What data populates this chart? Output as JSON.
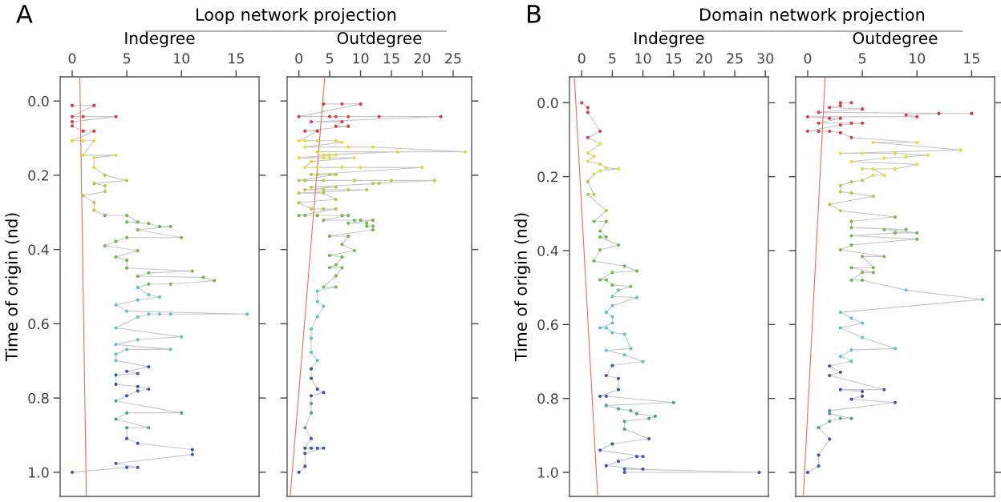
{
  "chart_data": [
    {
      "type": "line",
      "orientation": "horizontal",
      "title": "Loop network projection",
      "xlabel": "Indegree",
      "ylabel": "Time of origin (nd)",
      "annotations": [
        "A"
      ],
      "xlim": [
        -1.1,
        17.1
      ],
      "xticks": [
        0,
        5,
        10,
        15
      ],
      "ylim": [
        1.065,
        -0.065
      ],
      "yticks": [
        {
          "value": 0,
          "label": "0.0"
        },
        {
          "value": 0.2,
          "label": "0.2"
        },
        {
          "value": 0.4,
          "label": "0.4"
        },
        {
          "value": 0.6,
          "label": "0.6"
        },
        {
          "value": 0.8,
          "label": "0.8"
        },
        {
          "value": 1,
          "label": "1.0"
        }
      ],
      "series": [
        {
          "color": "#c8c8c8",
          "marker": "circle",
          "x": [
            0.012,
            0.012,
            0.042,
            0.042,
            0.042,
            0.056,
            0.067,
            0.081,
            0.081,
            0.107,
            0.107,
            0.107,
            0.146,
            0.146,
            0.153,
            0.179,
            0.2,
            0.214,
            0.222,
            0.228,
            0.244,
            0.255,
            0.273,
            0.294,
            0.308,
            0.308,
            0.326,
            0.326,
            0.33,
            0.338,
            0.338,
            0.347,
            0.368,
            0.368,
            0.378,
            0.39,
            0.403,
            0.42,
            0.429,
            0.45,
            0.458,
            0.463,
            0.472,
            0.475,
            0.484,
            0.493,
            0.493,
            0.502,
            0.522,
            0.528,
            0.536,
            0.549,
            0.566,
            0.574,
            0.574,
            0.574,
            0.574,
            0.582,
            0.611,
            0.635,
            0.643,
            0.656,
            0.669,
            0.669,
            0.682,
            0.699,
            0.716,
            0.728,
            0.734,
            0.738,
            0.763,
            0.769,
            0.776,
            0.781,
            0.794,
            0.808,
            0.84,
            0.84,
            0.857,
            0.88,
            0.88,
            0.909,
            0.922,
            0.939,
            0.952,
            0.976,
            0.987,
            0.987,
            1.0
          ],
          "values": [
            0,
            2,
            0,
            1,
            4,
            0,
            0,
            1,
            2,
            0,
            1,
            2,
            1,
            4,
            2,
            2,
            3,
            5,
            2,
            3,
            3,
            1,
            2,
            2,
            3,
            5,
            6,
            5,
            7,
            8,
            9,
            6,
            10,
            5,
            4,
            3,
            6,
            4,
            5,
            5,
            11,
            7,
            6,
            12,
            13,
            9,
            7,
            6,
            7,
            8,
            6,
            4,
            5,
            16,
            8,
            9,
            7,
            6,
            4,
            10,
            6,
            4,
            9,
            5,
            4,
            4,
            7,
            5,
            6,
            4,
            4,
            6,
            7,
            6,
            5,
            4,
            10,
            5,
            4,
            7,
            5,
            5,
            6,
            11,
            11,
            4,
            6,
            5,
            0
          ],
          "colors": [
            "#e03a3e",
            "#e03a3e",
            "#e03a3e",
            "#e03a3e",
            "#e03a3e",
            "#e03a3e",
            "#e03a3e",
            "#e03a3e",
            "#e03a3e",
            "#e8dc2c",
            "#e8dc2c",
            "#e8dc2c",
            "#e8dc2c",
            "#e8dc2c",
            "#e8dc2c",
            "#e8dc2c",
            "#b8c93a",
            "#b8c93a",
            "#b8c93a",
            "#b8c93a",
            "#b8c93a",
            "#b8c93a",
            "#b8c93a",
            "#b8c93a",
            "#72b84e",
            "#72b84e",
            "#72b84e",
            "#72b84e",
            "#72b84e",
            "#72b84e",
            "#72b84e",
            "#72b84e",
            "#72b84e",
            "#72b84e",
            "#72b84e",
            "#72b84e",
            "#72b84e",
            "#72b84e",
            "#72b84e",
            "#72b84e",
            "#72b84e",
            "#72b84e",
            "#72b84e",
            "#72b84e",
            "#72b84e",
            "#72b84e",
            "#72b84e",
            "#5ec3cc",
            "#5ec3cc",
            "#5ec3cc",
            "#5ec3cc",
            "#5ec3cc",
            "#5ec3cc",
            "#5ec3cc",
            "#5ec3cc",
            "#5ec3cc",
            "#5ec3cc",
            "#5ec3cc",
            "#5ec3cc",
            "#5ec3cc",
            "#5ec3cc",
            "#5ec3cc",
            "#5ec3cc",
            "#5ec3cc",
            "#5ec3cc",
            "#5ec3cc",
            "#3f56a6",
            "#3f56a6",
            "#3f56a6",
            "#3f56a6",
            "#3f56a6",
            "#3f56a6",
            "#3f56a6",
            "#3f56a6",
            "#3f56a6",
            "#4f9e94",
            "#4f9e94",
            "#4f9e94",
            "#4f9e94",
            "#4f9e94",
            "#4f9e94",
            "#3f56a6",
            "#3f56a6",
            "#3f56a6",
            "#3f56a6",
            "#3f56a6",
            "#3f56a6",
            "#3f56a6",
            "#3f56a6"
          ]
        },
        {
          "type": "line",
          "color": "#f26d5b",
          "x": [
            -0.065,
            1.065
          ],
          "values": [
            0.7,
            1.3
          ]
        }
      ]
    },
    {
      "type": "line",
      "orientation": "horizontal",
      "xlabel": "Outdegree",
      "tick_labels": "x",
      "xlim": [
        -1.9,
        28
      ],
      "xticks": [
        0,
        5,
        10,
        15,
        20,
        25
      ],
      "ylim": [
        1.065,
        -0.065
      ],
      "yticks": [
        {
          "value": 0,
          "label": null
        },
        {
          "value": 0.2,
          "label": null
        },
        {
          "value": 0.4,
          "label": null
        },
        {
          "value": 0.6,
          "label": null
        },
        {
          "value": 0.8,
          "label": null
        },
        {
          "value": 1,
          "label": null
        }
      ],
      "series": [
        {
          "color": "#c8c8c8",
          "marker": "circle",
          "x": [
            0.008,
            0.008,
            0.008,
            0.042,
            0.042,
            0.042,
            0.042,
            0.042,
            0.042,
            0.056,
            0.056,
            0.068,
            0.068,
            0.081,
            0.081,
            0.107,
            0.107,
            0.107,
            0.107,
            0.111,
            0.124,
            0.124,
            0.124,
            0.137,
            0.137,
            0.137,
            0.145,
            0.145,
            0.145,
            0.153,
            0.153,
            0.153,
            0.153,
            0.163,
            0.179,
            0.179,
            0.179,
            0.179,
            0.179,
            0.198,
            0.198,
            0.198,
            0.198,
            0.214,
            0.214,
            0.214,
            0.214,
            0.214,
            0.214,
            0.222,
            0.222,
            0.232,
            0.232,
            0.239,
            0.239,
            0.239,
            0.239,
            0.248,
            0.248,
            0.265,
            0.274,
            0.291,
            0.291,
            0.291,
            0.308,
            0.308,
            0.308,
            0.308,
            0.308,
            0.321,
            0.321,
            0.321,
            0.321,
            0.329,
            0.329,
            0.337,
            0.337,
            0.347,
            0.364,
            0.364,
            0.386,
            0.403,
            0.416,
            0.42,
            0.441,
            0.449,
            0.449,
            0.471,
            0.501,
            0.501,
            0.512,
            0.54,
            0.553,
            0.581,
            0.614,
            0.639,
            0.677,
            0.699,
            0.721,
            0.747,
            0.776,
            0.785,
            0.794,
            0.815,
            0.84,
            0.88,
            0.909,
            0.935,
            0.935,
            0.935,
            0.935,
            0.949,
            0.984,
            1.0
          ],
          "values": [
            4,
            7,
            10,
            0,
            5,
            6,
            8,
            13,
            23,
            2,
            7,
            6,
            8,
            1,
            3,
            0,
            1,
            3,
            6,
            7,
            1,
            8,
            12,
            27,
            3,
            16,
            4,
            5,
            6,
            0,
            4,
            5,
            9,
            2,
            1,
            3,
            7,
            10,
            20,
            2,
            3,
            5,
            6,
            0,
            1,
            4,
            9,
            15,
            22,
            12,
            13,
            2,
            6,
            1,
            4,
            8,
            11,
            0,
            4,
            6,
            0,
            2,
            4,
            6,
            0,
            1,
            3,
            7,
            8,
            4,
            9,
            10,
            12,
            8,
            11,
            11,
            12,
            12,
            5,
            8,
            7,
            9,
            5,
            7,
            6,
            5,
            7,
            6,
            4,
            6,
            3,
            3,
            4,
            3,
            2,
            2,
            2,
            3,
            2,
            2,
            3,
            4,
            2,
            2,
            2,
            1,
            2,
            1,
            2,
            3,
            4,
            1,
            1,
            0
          ],
          "colors": [
            "#e03a3e",
            "#e03a3e",
            "#e03a3e",
            "#e03a3e",
            "#e03a3e",
            "#e03a3e",
            "#e03a3e",
            "#e03a3e",
            "#e03a3e",
            "#e03a3e",
            "#e03a3e",
            "#e03a3e",
            "#e03a3e",
            "#e03a3e",
            "#e03a3e",
            "#e8dc2c",
            "#e8dc2c",
            "#e8dc2c",
            "#e8dc2c",
            "#e8dc2c",
            "#e8dc2c",
            "#e8dc2c",
            "#e8dc2c",
            "#e8dc2c",
            "#e8dc2c",
            "#e8dc2c",
            "#e8dc2c",
            "#e8dc2c",
            "#e8dc2c",
            "#e8dc2c",
            "#e8dc2c",
            "#e8dc2c",
            "#e8dc2c",
            "#e8dc2c",
            "#e8dc2c",
            "#e8dc2c",
            "#e8dc2c",
            "#e8dc2c",
            "#e8dc2c",
            "#b8c93a",
            "#b8c93a",
            "#b8c93a",
            "#b8c93a",
            "#b8c93a",
            "#b8c93a",
            "#b8c93a",
            "#b8c93a",
            "#b8c93a",
            "#b8c93a",
            "#b8c93a",
            "#b8c93a",
            "#b8c93a",
            "#b8c93a",
            "#b8c93a",
            "#b8c93a",
            "#b8c93a",
            "#b8c93a",
            "#b8c93a",
            "#b8c93a",
            "#b8c93a",
            "#b8c93a",
            "#b8c93a",
            "#b8c93a",
            "#b8c93a",
            "#72b84e",
            "#72b84e",
            "#72b84e",
            "#72b84e",
            "#72b84e",
            "#72b84e",
            "#72b84e",
            "#72b84e",
            "#72b84e",
            "#72b84e",
            "#72b84e",
            "#72b84e",
            "#72b84e",
            "#72b84e",
            "#72b84e",
            "#72b84e",
            "#72b84e",
            "#72b84e",
            "#72b84e",
            "#72b84e",
            "#72b84e",
            "#72b84e",
            "#72b84e",
            "#72b84e",
            "#72b84e",
            "#72b84e",
            "#5ec3cc",
            "#5ec3cc",
            "#5ec3cc",
            "#5ec3cc",
            "#5ec3cc",
            "#5ec3cc",
            "#5ec3cc",
            "#5ec3cc",
            "#3f56a6",
            "#3f56a6",
            "#3f56a6",
            "#3f56a6",
            "#3f56a6",
            "#4f9e94",
            "#4f9e94",
            "#4f9e94",
            "#3f56a6",
            "#3f56a6",
            "#3f56a6",
            "#3f56a6",
            "#3f56a6",
            "#3f56a6",
            "#3f56a6",
            "#3f56a6"
          ]
        },
        {
          "type": "line",
          "color": "#f26d5b",
          "x": [
            -0.065,
            1.065
          ],
          "values": [
            4.2,
            -1.4
          ]
        }
      ]
    },
    {
      "type": "line",
      "orientation": "horizontal",
      "title": "Domain network projection",
      "xlabel": "Indegree",
      "ylabel": "Time of origin (nd)",
      "annotations": [
        "B"
      ],
      "xlim": [
        -2,
        30.5
      ],
      "xticks": [
        0,
        5,
        10,
        15,
        20,
        25,
        30
      ],
      "ylim": [
        1.065,
        -0.07
      ],
      "yticks": [
        {
          "value": 0,
          "label": "0.0"
        },
        {
          "value": 0.2,
          "label": "0.2"
        },
        {
          "value": 0.4,
          "label": "0.4"
        },
        {
          "value": 0.6,
          "label": "0.6"
        },
        {
          "value": 0.8,
          "label": "0.8"
        },
        {
          "value": 1,
          "label": "1.0"
        }
      ],
      "series": [
        {
          "color": "#c8c8c8",
          "marker": "circle",
          "x": [
            0,
            0.013,
            0.026,
            0.077,
            0.094,
            0.111,
            0.136,
            0.145,
            0.158,
            0.166,
            0.176,
            0.179,
            0.184,
            0.193,
            0.213,
            0.248,
            0.248,
            0.292,
            0.321,
            0.321,
            0.347,
            0.363,
            0.363,
            0.385,
            0.398,
            0.428,
            0.442,
            0.455,
            0.459,
            0.479,
            0.479,
            0.493,
            0.497,
            0.507,
            0.524,
            0.527,
            0.549,
            0.567,
            0.579,
            0.596,
            0.609,
            0.609,
            0.622,
            0.626,
            0.665,
            0.67,
            0.682,
            0.7,
            0.711,
            0.738,
            0.746,
            0.776,
            0.794,
            0.794,
            0.811,
            0.819,
            0.828,
            0.833,
            0.841,
            0.848,
            0.854,
            0.862,
            0.883,
            0.909,
            0.923,
            0.94,
            0.957,
            0.957,
            0.97,
            0.982,
            0.991,
            0.991,
            1.0,
            1.0
          ],
          "values": [
            0,
            1,
            1,
            3,
            1,
            3,
            1,
            2,
            1,
            3,
            4,
            6,
            3,
            2,
            1,
            2,
            1,
            4,
            2,
            4,
            3,
            4,
            3,
            6,
            3,
            2,
            7,
            9,
            5,
            3,
            4,
            5,
            8,
            6,
            5,
            9,
            5,
            4,
            5,
            5,
            3,
            4,
            5,
            7,
            8,
            4,
            7,
            10,
            5,
            4,
            6,
            6,
            3,
            4,
            15,
            4,
            6,
            8,
            9,
            12,
            11,
            7,
            7,
            11,
            5,
            3,
            10,
            9,
            6,
            4,
            10,
            7,
            29,
            7
          ],
          "colors": [
            "#e03a3e",
            "#e03a3e",
            "#e03a3e",
            "#e03a3e",
            "#e03a3e",
            "#e8dc2c",
            "#e8dc2c",
            "#e8dc2c",
            "#e8dc2c",
            "#e8dc2c",
            "#e8dc2c",
            "#e8dc2c",
            "#e8dc2c",
            "#e8dc2c",
            "#b8c93a",
            "#b8c93a",
            "#b8c93a",
            "#b8c93a",
            "#72b84e",
            "#72b84e",
            "#72b84e",
            "#72b84e",
            "#72b84e",
            "#72b84e",
            "#72b84e",
            "#72b84e",
            "#72b84e",
            "#72b84e",
            "#72b84e",
            "#72b84e",
            "#72b84e",
            "#72b84e",
            "#72b84e",
            "#5ec3cc",
            "#5ec3cc",
            "#5ec3cc",
            "#5ec3cc",
            "#5ec3cc",
            "#5ec3cc",
            "#5ec3cc",
            "#5ec3cc",
            "#5ec3cc",
            "#5ec3cc",
            "#5ec3cc",
            "#5ec3cc",
            "#5ec3cc",
            "#5ec3cc",
            "#5ec3cc",
            "#3f56a6",
            "#3f56a6",
            "#3f56a6",
            "#3f56a6",
            "#3f56a6",
            "#3f56a6",
            "#4f9e94",
            "#4f9e94",
            "#4f9e94",
            "#4f9e94",
            "#4f9e94",
            "#4f9e94",
            "#4f9e94",
            "#4f9e94",
            "#4f9e94",
            "#3f56a6",
            "#3f56a6",
            "#3f56a6",
            "#3f56a6",
            "#3f56a6",
            "#3f56a6",
            "#3f56a6",
            "#3f56a6",
            "#3f56a6",
            "#3f56a6",
            "#3f56a6"
          ]
        },
        {
          "type": "line",
          "color": "#f26d5b",
          "x": [
            -0.07,
            1.065
          ],
          "values": [
            -1.2,
            2.6
          ]
        }
      ]
    },
    {
      "type": "line",
      "orientation": "horizontal",
      "xlabel": "Outdegree",
      "tick_labels": "x",
      "xlim": [
        -1.1,
        17.1
      ],
      "xticks": [
        0,
        5,
        10,
        15
      ],
      "ylim": [
        1.065,
        -0.07
      ],
      "yticks": [
        {
          "value": 0,
          "label": null
        },
        {
          "value": 0.2,
          "label": null
        },
        {
          "value": 0.4,
          "label": null
        },
        {
          "value": 0.6,
          "label": null
        },
        {
          "value": 0.8,
          "label": null
        },
        {
          "value": 1,
          "label": null
        }
      ],
      "series": [
        {
          "color": "#c8c8c8",
          "marker": "circle",
          "x": [
            0,
            0,
            0.008,
            0.013,
            0.017,
            0.026,
            0.029,
            0.029,
            0.033,
            0.038,
            0.038,
            0.042,
            0.042,
            0.055,
            0.055,
            0.055,
            0.06,
            0.077,
            0.077,
            0.077,
            0.081,
            0.094,
            0.107,
            0.107,
            0.128,
            0.137,
            0.137,
            0.137,
            0.142,
            0.146,
            0.15,
            0.159,
            0.167,
            0.179,
            0.179,
            0.179,
            0.196,
            0.196,
            0.21,
            0.214,
            0.224,
            0.241,
            0.244,
            0.253,
            0.275,
            0.292,
            0.309,
            0.321,
            0.338,
            0.343,
            0.343,
            0.352,
            0.352,
            0.36,
            0.369,
            0.385,
            0.398,
            0.416,
            0.416,
            0.446,
            0.446,
            0.459,
            0.459,
            0.48,
            0.48,
            0.507,
            0.532,
            0.567,
            0.583,
            0.596,
            0.609,
            0.635,
            0.665,
            0.669,
            0.686,
            0.699,
            0.712,
            0.729,
            0.738,
            0.776,
            0.776,
            0.781,
            0.794,
            0.802,
            0.811,
            0.833,
            0.841,
            0.854,
            0.854,
            0.862,
            0.879,
            0.91,
            0.953,
            0.983,
            1.0
          ],
          "values": [
            4,
            3,
            3,
            2,
            5,
            1,
            15,
            12,
            9,
            10,
            0,
            2,
            3,
            1,
            4,
            5,
            3,
            0,
            1,
            2,
            3,
            4,
            10,
            6,
            14,
            3,
            5,
            8,
            11,
            9,
            7,
            4,
            10,
            8,
            5,
            6,
            7,
            6,
            5,
            4,
            3,
            3,
            4,
            6,
            2,
            3,
            8,
            4,
            4,
            9,
            7,
            10,
            8,
            4,
            10,
            4,
            3,
            7,
            5,
            6,
            4,
            6,
            5,
            4,
            5,
            9,
            16,
            3,
            4,
            5,
            3,
            5,
            8,
            4,
            3,
            4,
            2,
            3,
            2,
            7,
            3,
            5,
            5,
            4,
            8,
            2,
            2,
            4,
            3,
            2,
            1,
            2,
            1,
            1,
            0
          ],
          "colors": [
            "#e03a3e",
            "#e03a3e",
            "#e03a3e",
            "#e03a3e",
            "#e03a3e",
            "#e03a3e",
            "#e03a3e",
            "#e03a3e",
            "#e03a3e",
            "#e03a3e",
            "#e03a3e",
            "#e03a3e",
            "#e03a3e",
            "#e03a3e",
            "#e03a3e",
            "#e03a3e",
            "#e03a3e",
            "#e03a3e",
            "#e03a3e",
            "#e03a3e",
            "#e03a3e",
            "#e03a3e",
            "#e8dc2c",
            "#e8dc2c",
            "#e8dc2c",
            "#e8dc2c",
            "#e8dc2c",
            "#e8dc2c",
            "#e8dc2c",
            "#e8dc2c",
            "#e8dc2c",
            "#e8dc2c",
            "#e8dc2c",
            "#e8dc2c",
            "#e8dc2c",
            "#e8dc2c",
            "#e8dc2c",
            "#e8dc2c",
            "#b8c93a",
            "#b8c93a",
            "#b8c93a",
            "#b8c93a",
            "#b8c93a",
            "#b8c93a",
            "#b8c93a",
            "#b8c93a",
            "#72b84e",
            "#72b84e",
            "#72b84e",
            "#72b84e",
            "#72b84e",
            "#72b84e",
            "#72b84e",
            "#72b84e",
            "#72b84e",
            "#72b84e",
            "#72b84e",
            "#72b84e",
            "#72b84e",
            "#72b84e",
            "#72b84e",
            "#72b84e",
            "#72b84e",
            "#72b84e",
            "#72b84e",
            "#5ec3cc",
            "#5ec3cc",
            "#5ec3cc",
            "#5ec3cc",
            "#5ec3cc",
            "#5ec3cc",
            "#5ec3cc",
            "#5ec3cc",
            "#5ec3cc",
            "#5ec3cc",
            "#5ec3cc",
            "#3f56a6",
            "#3f56a6",
            "#3f56a6",
            "#3f56a6",
            "#3f56a6",
            "#3f56a6",
            "#3f56a6",
            "#3f56a6",
            "#3f56a6",
            "#4f9e94",
            "#4f9e94",
            "#4f9e94",
            "#4f9e94",
            "#4f9e94",
            "#4f9e94",
            "#3f56a6",
            "#3f56a6",
            "#3f56a6",
            "#3f56a6"
          ]
        },
        {
          "type": "line",
          "color": "#f26d5b",
          "x": [
            -0.07,
            1.065
          ],
          "values": [
            1.6,
            -0.4
          ]
        }
      ]
    }
  ]
}
